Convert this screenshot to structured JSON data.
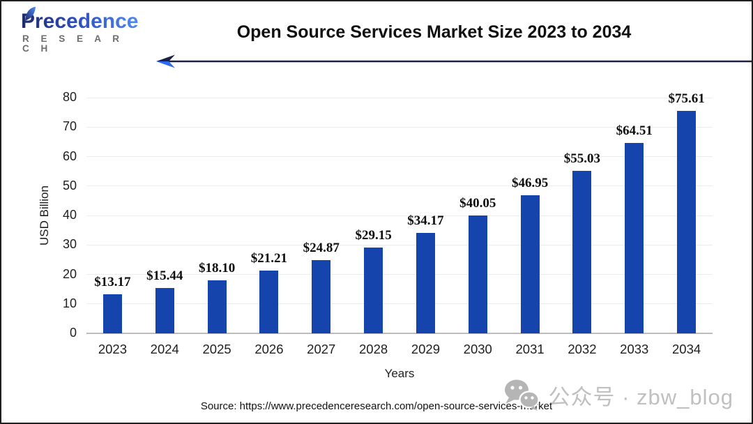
{
  "header": {
    "logo_brand": "Precedence",
    "logo_sub": "R E S E A R C H",
    "title": "Open Source Services Market Size 2023 to 2034"
  },
  "chart_data": {
    "type": "bar",
    "title": "Open Source Services Market Size 2023 to 2034",
    "categories": [
      "2023",
      "2024",
      "2025",
      "2026",
      "2027",
      "2028",
      "2029",
      "2030",
      "2031",
      "2032",
      "2033",
      "2034"
    ],
    "values": [
      13.17,
      15.44,
      18.1,
      21.21,
      24.87,
      29.15,
      34.17,
      40.05,
      46.95,
      55.03,
      64.51,
      75.61
    ],
    "value_labels": [
      "$13.17",
      "$15.44",
      "$18.10",
      "$21.21",
      "$24.87",
      "$29.15",
      "$34.17",
      "$40.05",
      "$46.95",
      "$55.03",
      "$64.51",
      "$75.61"
    ],
    "xlabel": "Years",
    "ylabel": "USD Billion",
    "ylim": [
      0,
      80
    ],
    "ytick_step": 10,
    "grid": true,
    "legend_position": "none",
    "bar_color": "#1444ac",
    "axis_line_color": "#bdbdbd",
    "gridline_color": "#ededed"
  },
  "footer": {
    "source": "Source: https://www.precedenceresearch.com/open-source-services-market",
    "watermark": "公众号 · zbw_blog"
  },
  "colors": {
    "accent_blue": "#1444ac",
    "arrow_dark": "#1b2142",
    "arrow_bright": "#2e6af0",
    "logo_gradient_start": "#1f2a6d",
    "logo_gradient_end": "#4e8bf5",
    "watermark_gray": "#c0c0c0"
  }
}
